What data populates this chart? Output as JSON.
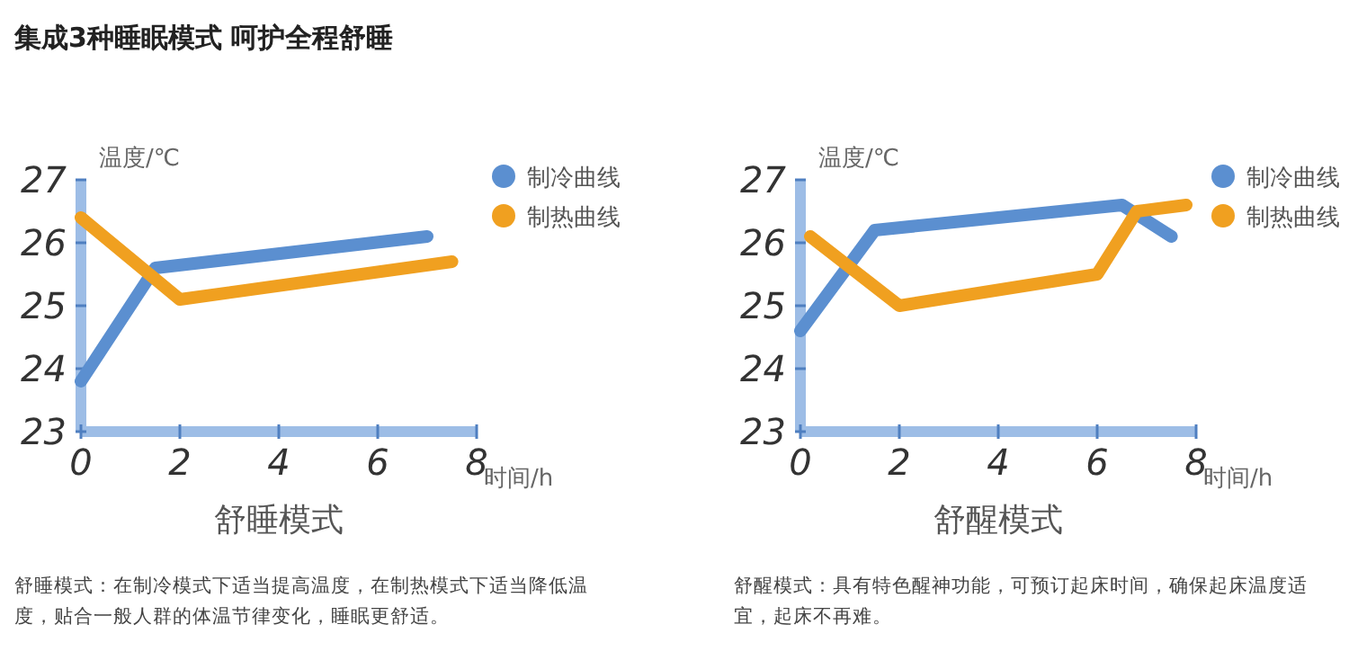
{
  "chart_data": [
    {
      "type": "line",
      "title": "舒睡模式",
      "xlabel": "时间/h",
      "ylabel": "温度/℃",
      "xlim": [
        0,
        8
      ],
      "ylim": [
        23,
        27
      ],
      "xticks": [
        0,
        2,
        4,
        6,
        8
      ],
      "yticks": [
        23,
        24,
        25,
        26,
        27
      ],
      "legend": "top right",
      "marker": "none",
      "line_style": "solid",
      "grid": false,
      "series": [
        {
          "name": "制冷曲线",
          "color": "#5b8fd0",
          "x": [
            0,
            1.5,
            7
          ],
          "values": [
            23.8,
            25.6,
            26.1
          ]
        },
        {
          "name": "制热曲线",
          "color": "#f0a020",
          "x": [
            0,
            2,
            7.5
          ],
          "values": [
            26.4,
            25.1,
            25.7
          ]
        }
      ],
      "annotations": [
        "集成3种睡眠模式 呵护全程舒睡",
        "舒睡模式：在制冷模式下适当提高温度，在制热模式下适当降低温度，贴合一般人群的体温节律变化，睡眠更舒适。"
      ]
    },
    {
      "type": "line",
      "title": "舒醒模式",
      "xlabel": "时间/h",
      "ylabel": "温度/℃",
      "xlim": [
        0,
        8
      ],
      "ylim": [
        23,
        27
      ],
      "xticks": [
        0,
        2,
        4,
        6,
        8
      ],
      "yticks": [
        23,
        24,
        25,
        26,
        27
      ],
      "legend": "top right",
      "marker": "none",
      "line_style": "solid",
      "grid": false,
      "series": [
        {
          "name": "制冷曲线",
          "color": "#5b8fd0",
          "x": [
            0,
            1.5,
            6.5,
            7.5
          ],
          "values": [
            24.6,
            26.2,
            26.6,
            26.1
          ]
        },
        {
          "name": "制热曲线",
          "color": "#f0a020",
          "x": [
            0.2,
            2,
            6,
            6.8,
            7.8
          ],
          "values": [
            26.1,
            25.0,
            25.5,
            26.5,
            26.6
          ]
        }
      ],
      "annotations": [
        "舒醒模式：具有特色醒神功能，可预订起床时间，确保起床温度适宜，起床不再难。"
      ]
    }
  ]
}
